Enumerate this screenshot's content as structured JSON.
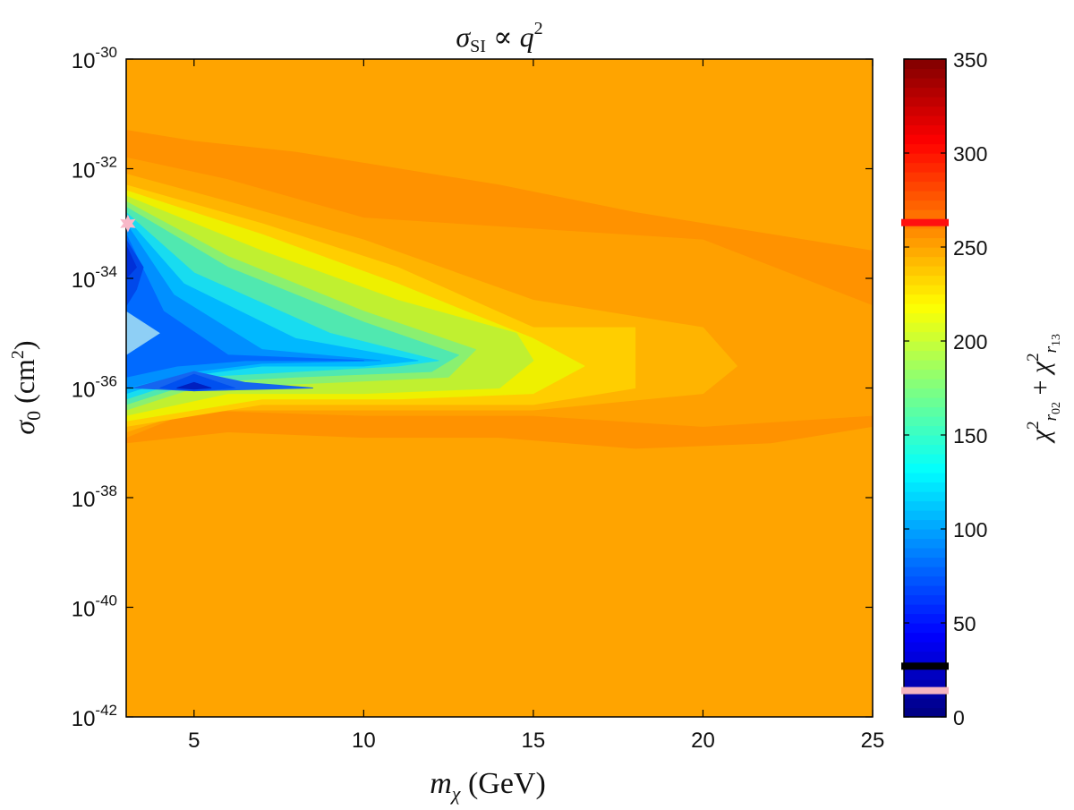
{
  "chart_data": {
    "type": "heatmap",
    "subtype": "filled-contour",
    "title": "σSI ∝ q²",
    "xlabel": "mχ (GeV)",
    "ylabel": "σ0 (cm²)",
    "colorbar_label": "χ²r02 + χ²r13",
    "colormap": "jet",
    "xlim": [
      3,
      25
    ],
    "ylim_log10": [
      -42,
      -30
    ],
    "x_ticks": [
      5,
      10,
      15,
      20,
      25
    ],
    "y_ticks": [
      {
        "exp": -30,
        "label": "10",
        "sup": "-30"
      },
      {
        "exp": -32,
        "label": "10",
        "sup": "-32"
      },
      {
        "exp": -34,
        "label": "10",
        "sup": "-34"
      },
      {
        "exp": -36,
        "label": "10",
        "sup": "-36"
      },
      {
        "exp": -38,
        "label": "10",
        "sup": "-38"
      },
      {
        "exp": -40,
        "label": "10",
        "sup": "-40"
      },
      {
        "exp": -42,
        "label": "10",
        "sup": "-42"
      }
    ],
    "colorbar": {
      "range": [
        0,
        350
      ],
      "ticks": [
        0,
        50,
        100,
        150,
        200,
        250,
        300,
        350
      ],
      "markers": [
        {
          "value": 263,
          "color": "#ff1010"
        },
        {
          "value": 27,
          "color": "#000000"
        },
        {
          "value": 14,
          "color": "#f5b5c0"
        }
      ]
    },
    "background_value": 250,
    "contour_levels": [
      {
        "value": 245,
        "color": "#ff9200",
        "x": [
          3,
          3,
          5,
          8,
          11,
          14,
          18,
          22,
          25,
          25,
          22,
          18,
          14,
          10,
          6,
          3
        ],
        "y": [
          -37.0,
          -31.3,
          -31.5,
          -31.7,
          -32.0,
          -32.3,
          -32.8,
          -33.2,
          -33.5,
          -36.7,
          -37.0,
          -37.1,
          -36.9,
          -36.9,
          -36.8,
          -37.0
        ]
      },
      {
        "value": 235,
        "color": "#ffa000",
        "x": [
          3,
          3,
          6,
          10,
          15,
          20,
          25,
          25,
          20,
          15,
          10,
          5,
          3
        ],
        "y": [
          -36.9,
          -31.8,
          -32.2,
          -32.9,
          -33.1,
          -33.3,
          -34.5,
          -36.5,
          -36.7,
          -36.5,
          -36.5,
          -36.4,
          -36.9
        ]
      },
      {
        "value": 225,
        "color": "#ffb400",
        "x": [
          3,
          3,
          6,
          10,
          15,
          20,
          21,
          20,
          15,
          10,
          5,
          3
        ],
        "y": [
          -36.8,
          -32.1,
          -32.6,
          -33.3,
          -34.4,
          -34.9,
          -35.6,
          -36.1,
          -36.4,
          -36.4,
          -36.4,
          -36.8
        ]
      },
      {
        "value": 215,
        "color": "#ffce00",
        "x": [
          3,
          3,
          7,
          11,
          15,
          18,
          18,
          15,
          11,
          7,
          3
        ],
        "y": [
          -36.7,
          -32.3,
          -33.0,
          -33.8,
          -34.9,
          -34.9,
          -36.0,
          -36.3,
          -36.3,
          -36.3,
          -36.7
        ]
      },
      {
        "value": 205,
        "color": "#eef000",
        "x": [
          3,
          3,
          7,
          11,
          15,
          16.5,
          15,
          11,
          7,
          3
        ],
        "y": [
          -36.6,
          -32.4,
          -33.2,
          -34.1,
          -35.1,
          -35.6,
          -36.1,
          -36.2,
          -36.2,
          -36.6
        ]
      },
      {
        "value": 190,
        "color": "#c0f030",
        "x": [
          3,
          3,
          7,
          11,
          14.5,
          15.0,
          14,
          10,
          6,
          3
        ],
        "y": [
          -36.5,
          -32.5,
          -33.5,
          -34.4,
          -35.0,
          -35.5,
          -36.0,
          -36.1,
          -36.1,
          -36.5
        ]
      },
      {
        "value": 175,
        "color": "#8af070",
        "x": [
          3,
          3,
          6,
          10,
          13.3,
          12.5,
          9,
          5,
          3
        ],
        "y": [
          -36.4,
          -32.6,
          -33.6,
          -34.6,
          -35.3,
          -35.8,
          -35.9,
          -36.0,
          -36.4
        ]
      },
      {
        "value": 160,
        "color": "#50e8b0",
        "x": [
          3,
          3,
          6,
          10,
          12.8,
          12,
          8,
          5,
          3
        ],
        "y": [
          -36.3,
          -32.7,
          -33.8,
          -34.8,
          -35.4,
          -35.7,
          -35.8,
          -35.9,
          -36.3
        ]
      },
      {
        "value": 140,
        "color": "#18dcf0",
        "x": [
          3,
          3,
          5,
          9,
          12.2,
          11,
          8,
          5,
          3
        ],
        "y": [
          -36.2,
          -32.8,
          -33.9,
          -35.0,
          -35.5,
          -35.6,
          -35.7,
          -35.8,
          -36.2
        ]
      },
      {
        "value": 120,
        "color": "#00b8ff",
        "x": [
          3,
          3,
          4.7,
          8,
          11.6,
          10,
          7,
          4.5,
          3
        ],
        "y": [
          -36.1,
          -32.9,
          -34.1,
          -35.1,
          -35.5,
          -35.6,
          -35.6,
          -35.8,
          -36.1
        ]
      },
      {
        "value": 100,
        "color": "#0090ff",
        "x": [
          3,
          3,
          4.4,
          7,
          10.5,
          7,
          5,
          3
        ],
        "y": [
          -36.0,
          -33.0,
          -34.3,
          -35.3,
          -35.5,
          -35.55,
          -35.7,
          -36.0
        ]
      },
      {
        "value": 80,
        "color": "#006aff",
        "x": [
          3,
          3,
          4.1,
          6,
          10.0,
          6.5,
          4.5,
          3
        ],
        "y": [
          -35.8,
          -33.2,
          -34.6,
          -35.4,
          -35.5,
          -35.5,
          -35.6,
          -35.8
        ]
      },
      {
        "value": 70,
        "color": "#1565f0",
        "x": [
          3.2,
          5,
          6.5,
          8.5,
          8.5,
          5,
          3.2
        ],
        "y": [
          -36.0,
          -35.7,
          -35.9,
          -36.0,
          -36.0,
          -36.05,
          -36.0
        ]
      },
      {
        "value": 60,
        "color": "#0048ea",
        "x": [
          3,
          3,
          3.5,
          3.3,
          3
        ],
        "y": [
          -34.5,
          -33.3,
          -33.8,
          -34.2,
          -34.5
        ]
      },
      {
        "value": 55,
        "color": "#0050f0",
        "x": [
          4.0,
          5.0,
          6.2,
          5.0,
          4.0
        ],
        "y": [
          -36.0,
          -35.75,
          -36.0,
          -36.05,
          -36.0
        ]
      },
      {
        "value": 40,
        "color": "#0030d8",
        "x": [
          3,
          3,
          3.3,
          3
        ],
        "y": [
          -34.0,
          -33.4,
          -33.8,
          -34.0
        ]
      },
      {
        "value": 35,
        "color": "#0020c0",
        "x": [
          4.5,
          5.0,
          5.5,
          5.0,
          4.5
        ],
        "y": [
          -36.0,
          -35.9,
          -36.0,
          -36.02,
          -36.0
        ]
      }
    ],
    "annotations": [
      {
        "type": "triangle",
        "color": "#8ecff5",
        "x": [
          3,
          4.0,
          3
        ],
        "y": [
          -34.6,
          -35.0,
          -35.4
        ]
      },
      {
        "type": "star-marker",
        "color": "#f8b8c8",
        "x": 3.05,
        "y": -33.0
      }
    ]
  }
}
